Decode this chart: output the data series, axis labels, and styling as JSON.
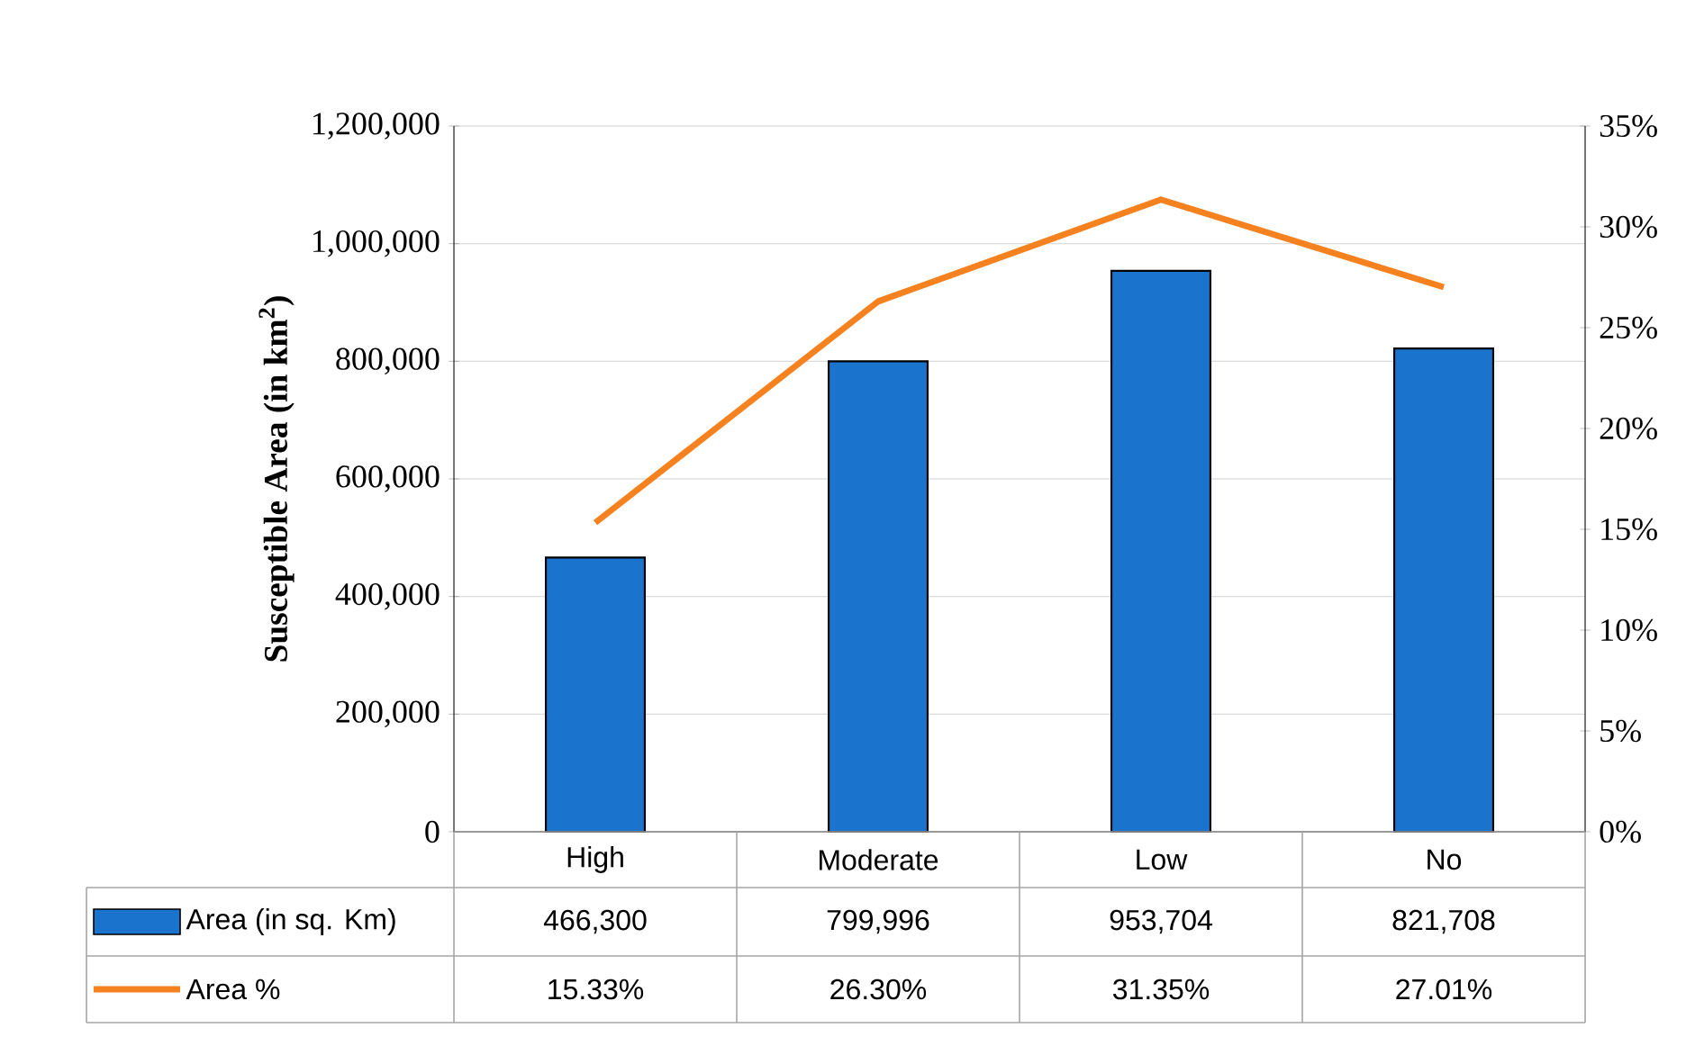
{
  "chart_data": {
    "type": "bar",
    "ylabel": "Susceptible Area (in km$^{2}$)",
    "categories": [
      "High",
      "Moderate",
      "Low",
      "No"
    ],
    "series": [
      {
        "name": "Area (in sq. Km)",
        "color": "#1a73cc",
        "values": [
          466300,
          799996,
          953704,
          821708
        ],
        "value_labels": [
          "466,300",
          "799,996",
          "953,704",
          "821,708"
        ]
      },
      {
        "name": "Area %",
        "type": "line",
        "axis": "y2",
        "color": "#f5821f",
        "values": [
          15.33,
          26.3,
          31.35,
          27.01
        ],
        "value_labels": [
          "15.33%",
          "26.30%",
          "31.35%",
          "27.01%"
        ]
      }
    ],
    "ylim": [
      0,
      1200000
    ],
    "yticks": [
      {
        "value": 0,
        "label": "0"
      },
      {
        "value": 200000,
        "label": "200,000"
      },
      {
        "value": 400000,
        "label": "400,000"
      },
      {
        "value": 600000,
        "label": "600,000"
      },
      {
        "value": 800000,
        "label": "800,000"
      },
      {
        "value": 1000000,
        "label": "1,000,000"
      },
      {
        "value": 1200000,
        "label": "1,200,000"
      }
    ],
    "y2lim": [
      0,
      35
    ],
    "y2ticks": [
      {
        "value": 0,
        "label": "0%"
      },
      {
        "value": 5,
        "label": "5%"
      },
      {
        "value": 10,
        "label": "10%"
      },
      {
        "value": 15,
        "label": "15%"
      },
      {
        "value": 20,
        "label": "20%"
      },
      {
        "value": 25,
        "label": "25%"
      },
      {
        "value": 30,
        "label": "30%"
      },
      {
        "value": 35,
        "label": "35%"
      }
    ],
    "grid": "y",
    "legend": "bottom"
  }
}
